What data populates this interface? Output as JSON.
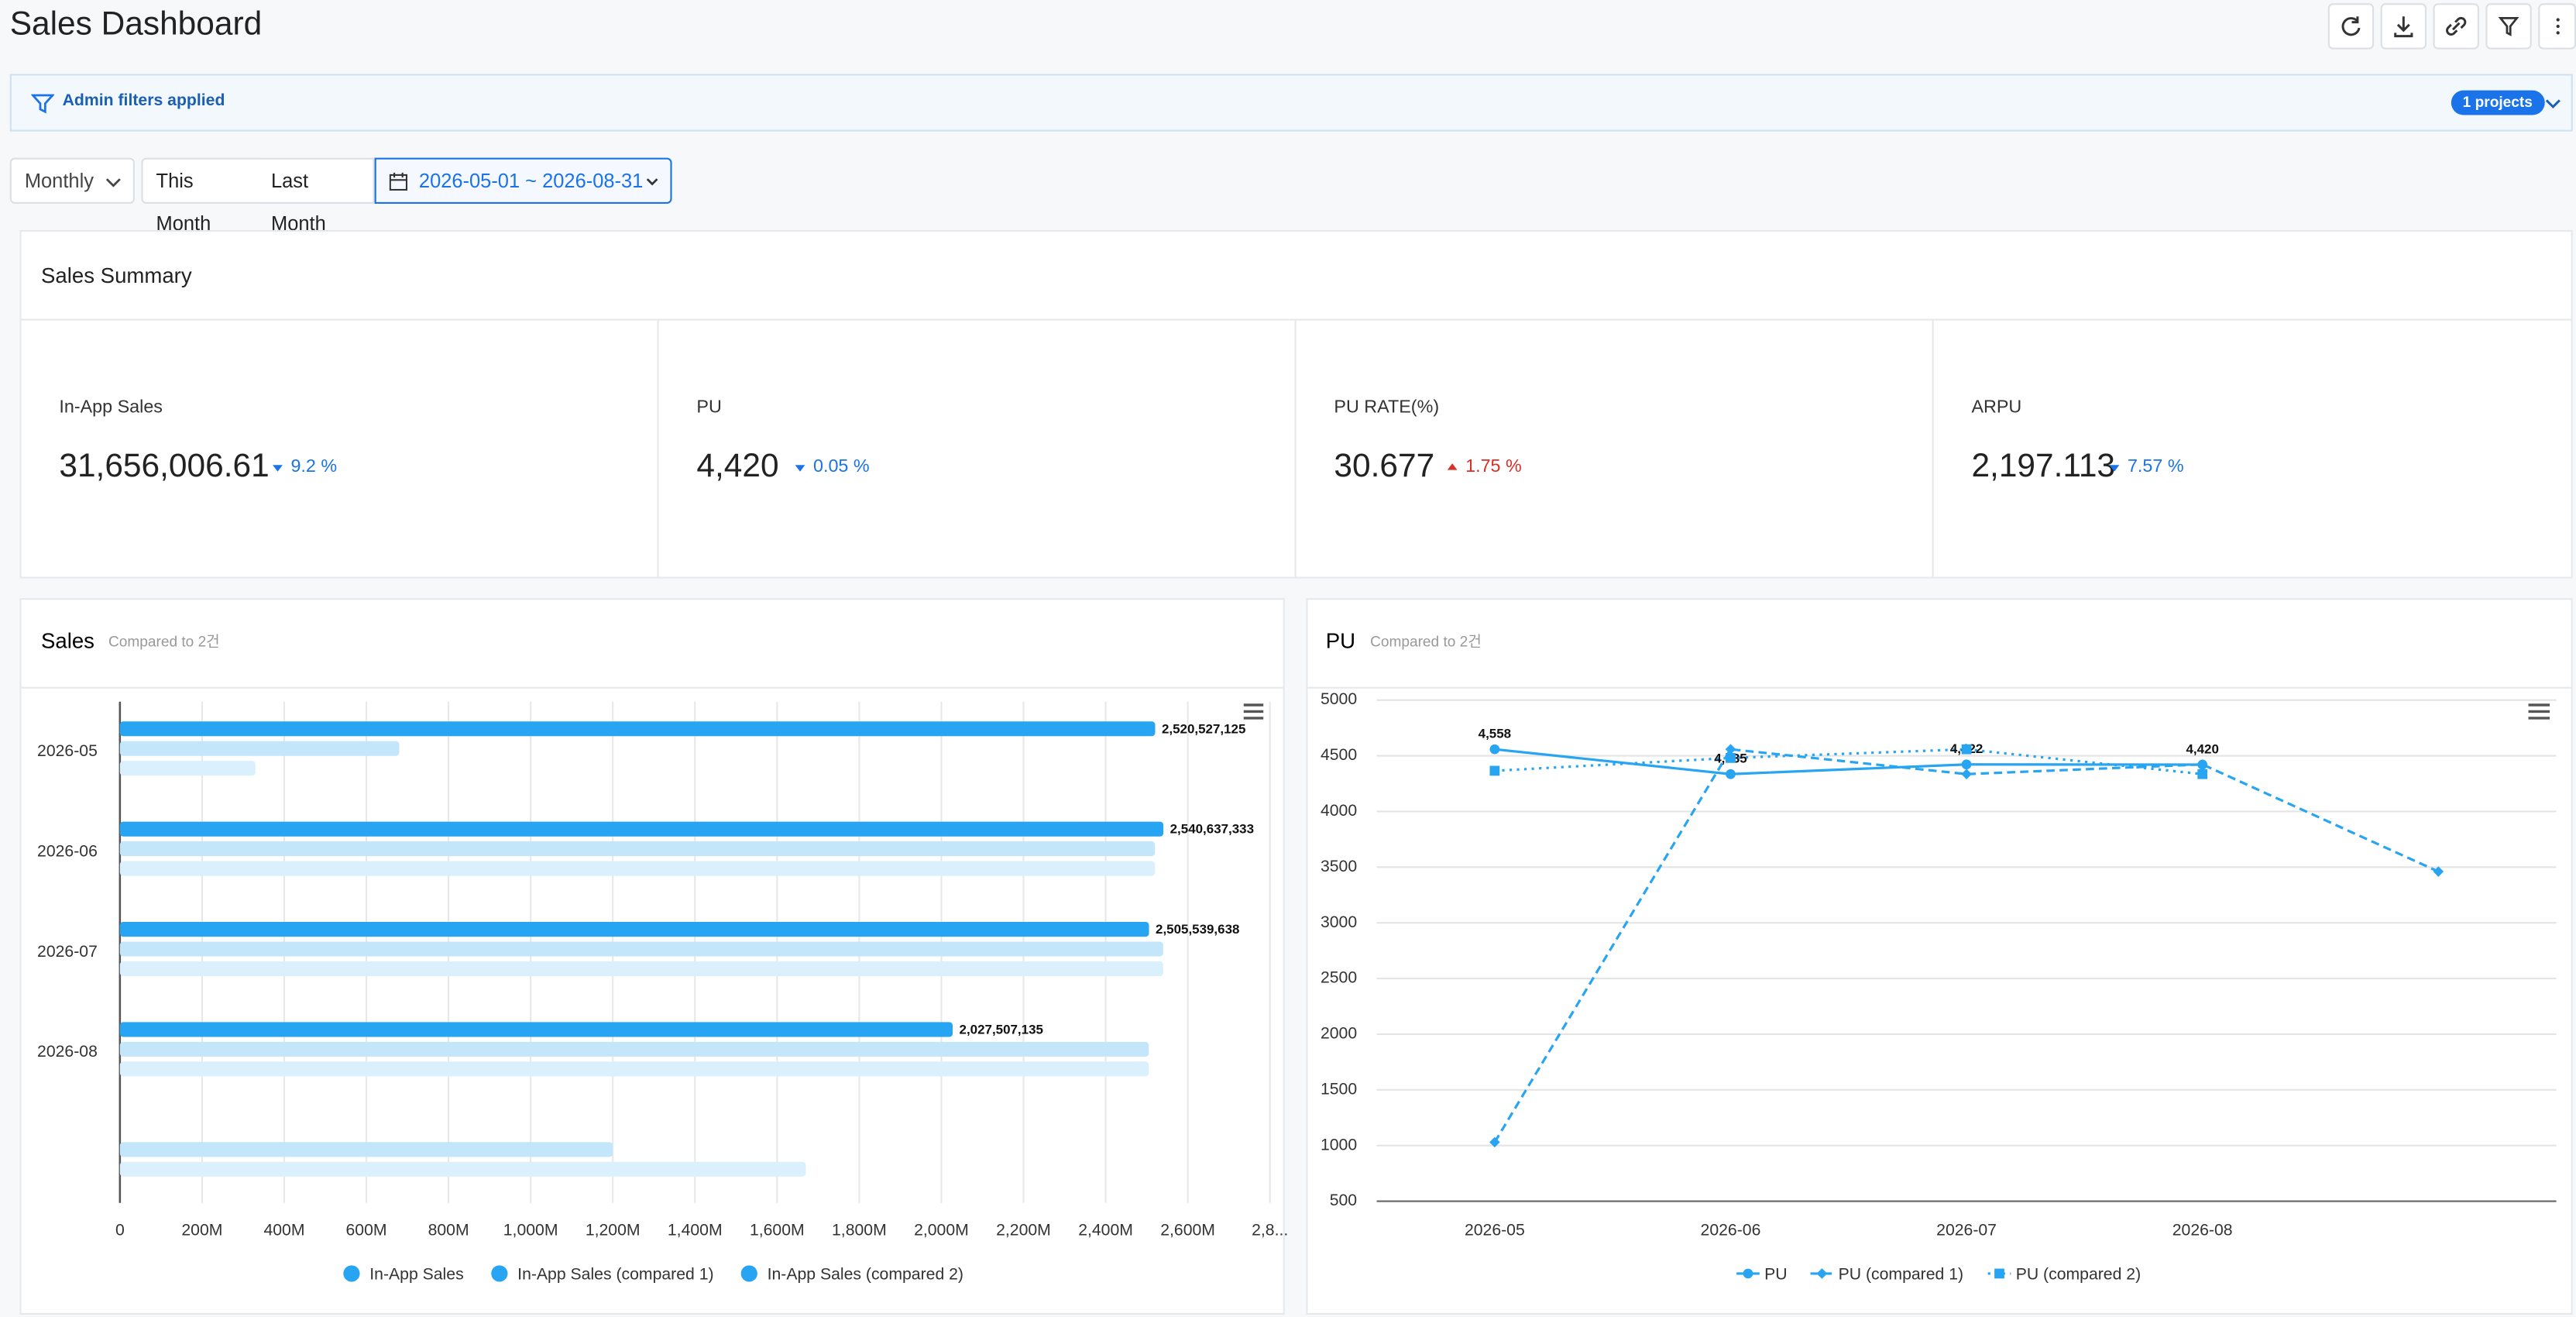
{
  "header": {
    "title": "Sales Dashboard"
  },
  "filter_bar": {
    "label": "Admin filters applied",
    "badge": "1 projects"
  },
  "controls": {
    "period": "Monthly",
    "this_month": "This Month",
    "last_month": "Last Month",
    "date_range": "2026-05-01 ~ 2026-08-31"
  },
  "summary": {
    "title": "Sales Summary",
    "cards": [
      {
        "label": "In-App Sales",
        "value": "31,656,006.61",
        "change": "9.2 %"
      },
      {
        "label": "PU",
        "value": "4,420",
        "change": "0.05 %"
      },
      {
        "label": "PU RATE(%)",
        "value": "30.677",
        "change": "1.75 %"
      },
      {
        "label": "ARPU",
        "value": "2,197.113",
        "change": "7.57 %"
      }
    ]
  },
  "chart_data": [
    {
      "type": "bar",
      "horizontal": true,
      "title": "Sales",
      "subtitle": "Compared to 2건",
      "categories": [
        "2026-05",
        "2026-06",
        "2026-07",
        "2026-08",
        null
      ],
      "series": [
        {
          "name": "In-App Sales",
          "color": "#27a4f2",
          "values": [
            2520527125,
            2540637333,
            2505539638,
            2027507135,
            null
          ],
          "value_labels": [
            "2,520,527,125",
            "2,540,637,333",
            "2,505,539,638",
            "2,027,507,135",
            null
          ]
        },
        {
          "name": "In-App Sales (compared 1)",
          "color": "#c3e6fb",
          "values": [
            680000000,
            2520000000,
            2540000000,
            2505000000,
            1200000000
          ]
        },
        {
          "name": "In-App Sales (compared 2)",
          "color": "#daf0fd",
          "values": [
            330000000,
            2520000000,
            2540000000,
            2505000000,
            1670000000
          ]
        }
      ],
      "xlim": [
        0,
        2800000000
      ],
      "xticks": [
        0,
        {
          "value": 200000000,
          "label": "200M"
        },
        {
          "value": 400000000,
          "label": "400M"
        },
        {
          "value": 600000000,
          "label": "600M"
        },
        {
          "value": 800000000,
          "label": "800M"
        },
        {
          "value": 1000000000,
          "label": "1,000M"
        },
        {
          "value": 1200000000,
          "label": "1,200M"
        },
        {
          "value": 1400000000,
          "label": "1,400M"
        },
        {
          "value": 1600000000,
          "label": "1,600M"
        },
        {
          "value": 1800000000,
          "label": "1,800M"
        },
        {
          "value": 2000000000,
          "label": "2,000M"
        },
        {
          "value": 2200000000,
          "label": "2,200M"
        },
        {
          "value": 2400000000,
          "label": "2,400M"
        },
        {
          "value": 2600000000,
          "label": "2,600M"
        },
        {
          "value": 2800000000,
          "label": "2,8..."
        }
      ],
      "grid": true
    },
    {
      "type": "line",
      "title": "PU",
      "subtitle": "Compared to 2건",
      "categories": [
        "2026-05",
        "2026-06",
        "2026-07",
        "2026-08",
        null
      ],
      "series": [
        {
          "name": "PU",
          "color": "#27a4f2",
          "dash": "solid",
          "marker": "circle",
          "values": [
            4558,
            4335,
            4422,
            4420,
            null
          ],
          "value_labels": [
            "4,558",
            "4,335",
            "4,422",
            "4,420",
            null
          ]
        },
        {
          "name": "PU (compared 1)",
          "color": "#27a4f2",
          "dash": "dashed",
          "marker": "diamond",
          "values": [
            1030,
            4558,
            4335,
            4422,
            3460
          ]
        },
        {
          "name": "PU (compared 2)",
          "color": "#27a4f2",
          "dash": "dotted",
          "marker": "square",
          "values": [
            4365,
            4480,
            4558,
            4335,
            null
          ]
        }
      ],
      "ylim": [
        500,
        5000
      ],
      "yticks": [
        500,
        1000,
        1500,
        2000,
        2500,
        3000,
        3500,
        4000,
        4500,
        5000
      ],
      "grid": true
    }
  ]
}
